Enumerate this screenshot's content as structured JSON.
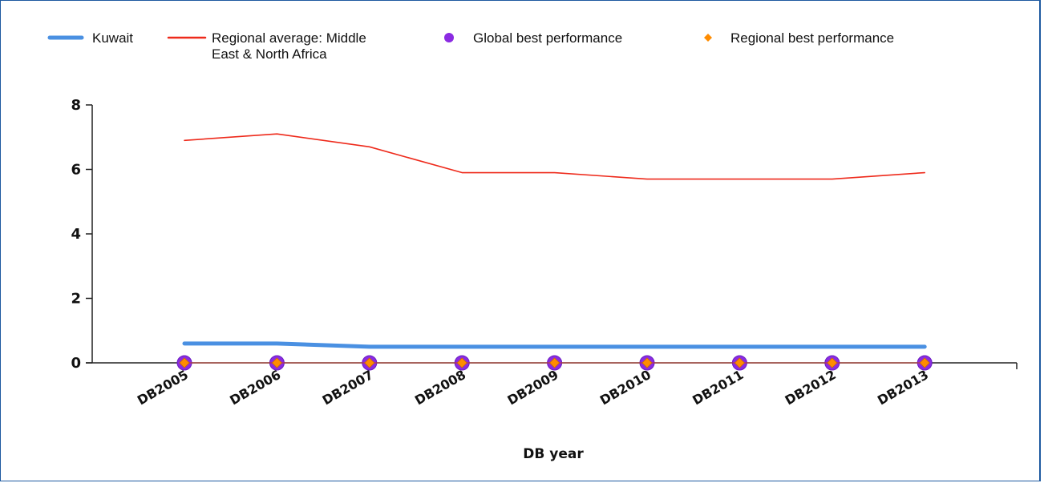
{
  "chart_data": {
    "type": "line",
    "title": "",
    "xlabel": "DB year",
    "ylabel": "",
    "ylim": [
      0,
      8
    ],
    "yticks": [
      0,
      2,
      4,
      6,
      8
    ],
    "categories": [
      "DB2005",
      "DB2006",
      "DB2007",
      "DB2008",
      "DB2009",
      "DB2010",
      "DB2011",
      "DB2012",
      "DB2013"
    ],
    "legend_position": "top",
    "grid": false,
    "series": [
      {
        "name": "Kuwait",
        "kind": "line",
        "color": "#4a90e2",
        "values": [
          0.6,
          0.6,
          0.5,
          0.5,
          0.5,
          0.5,
          0.5,
          0.5,
          0.5
        ]
      },
      {
        "name": "Regional average: Middle East & North Africa",
        "legend_lines": [
          "Regional average: Middle",
          "East & North Africa"
        ],
        "kind": "line",
        "color": "#ee2a1b",
        "values": [
          6.9,
          7.1,
          6.7,
          5.9,
          5.9,
          5.7,
          5.7,
          5.7,
          5.9
        ]
      },
      {
        "name": "Global best performance",
        "kind": "marker-circle",
        "color": "#8b2be2",
        "values": [
          0,
          0,
          0,
          0,
          0,
          0,
          0,
          0,
          0
        ]
      },
      {
        "name": "Regional best performance",
        "kind": "marker-diamond",
        "color": "#ff8c00",
        "values": [
          0,
          0,
          0,
          0,
          0,
          0,
          0,
          0,
          0
        ]
      }
    ]
  }
}
